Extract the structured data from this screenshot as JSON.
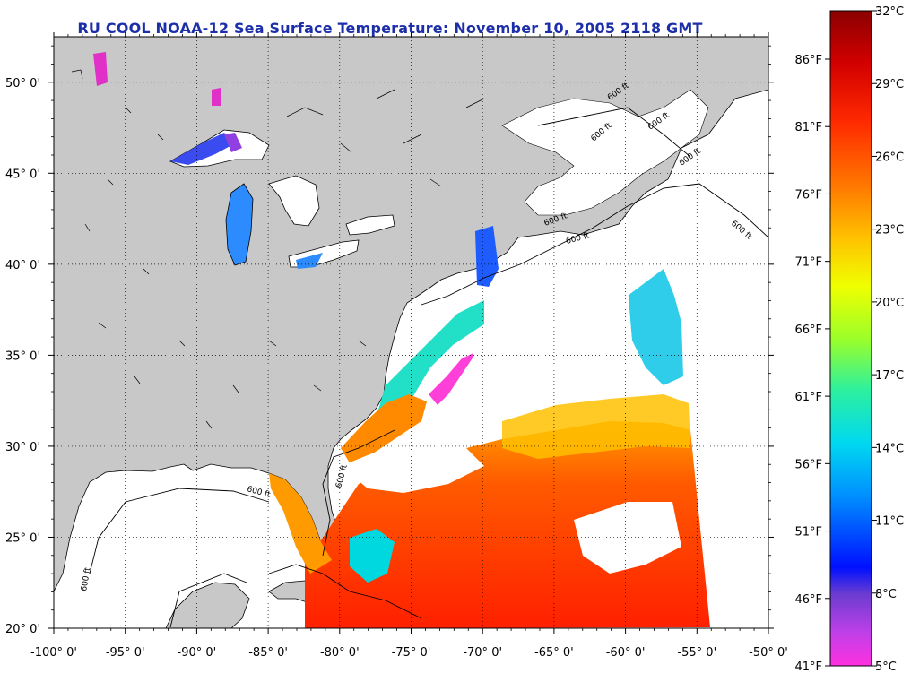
{
  "title": "RU COOL  NOAA-12  Sea Surface Temperature:  November 10, 2005 2118 GMT",
  "map": {
    "lon_range": [
      -100,
      -50
    ],
    "lat_range": [
      20,
      52.5
    ],
    "lon_ticks": [
      "-100° 0'",
      "-95° 0'",
      "-90° 0'",
      "-85° 0'",
      "-80° 0'",
      "-75° 0'",
      "-70° 0'",
      "-65° 0'",
      "-60° 0'",
      "-55° 0'",
      "-50° 0'"
    ],
    "lat_ticks": [
      "20° 0'",
      "25° 0'",
      "30° 0'",
      "35° 0'",
      "40° 0'",
      "45° 0'",
      "50° 0'"
    ],
    "contour_labels": [
      "600 ft",
      "600 ft",
      "600 ft",
      "600 ft",
      "600 ft",
      "600 ft",
      "600 ft",
      "600 ft",
      "600 ft",
      "600 ft"
    ],
    "colors": {
      "land": "#c8c8c8",
      "cloud": "#ffffff",
      "coast": "#000000"
    }
  },
  "colorbar": {
    "celsius_labels": [
      "32°C",
      "29°C",
      "26°C",
      "23°C",
      "20°C",
      "17°C",
      "14°C",
      "11°C",
      "8°C",
      "5°C"
    ],
    "fahrenheit_labels": [
      "86°F",
      "81°F",
      "76°F",
      "71°F",
      "66°F",
      "61°F",
      "56°F",
      "51°F",
      "46°F",
      "41°F"
    ],
    "gradient": [
      "#8b0000",
      "#d20000",
      "#ff2a00",
      "#ff7a00",
      "#ffc400",
      "#f0ff00",
      "#9cff28",
      "#2cf0a0",
      "#00d8f0",
      "#0090ff",
      "#0010ff",
      "#6a3cd0",
      "#c040e8",
      "#ff30e0"
    ]
  }
}
